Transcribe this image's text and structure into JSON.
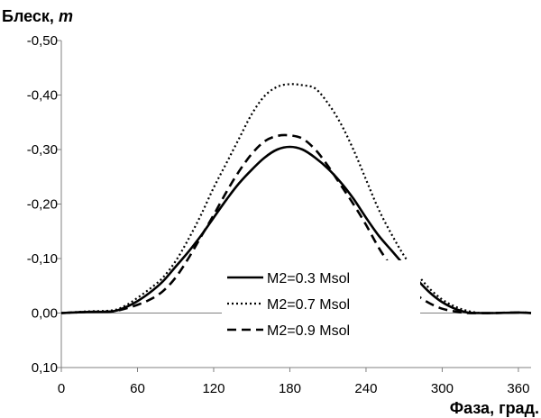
{
  "chart_data": {
    "type": "line",
    "ylabel": "Блеск, m",
    "ylabel_prefix": "Блеск, ",
    "ylabel_unit": "m",
    "xlabel": "Фаза, град.",
    "xlim": [
      0,
      370
    ],
    "ylim": [
      0.1,
      -0.5
    ],
    "y_axis_inverted": true,
    "x_ticks": [
      0,
      60,
      120,
      180,
      240,
      300,
      360
    ],
    "x_tick_labels": [
      "0",
      "60",
      "120",
      "180",
      "240",
      "300",
      "360"
    ],
    "y_ticks": [
      -0.5,
      -0.4,
      -0.3,
      -0.2,
      -0.1,
      0.0,
      0.1
    ],
    "y_tick_labels": [
      "-0,50",
      "-0,40",
      "-0,30",
      "-0,20",
      "-0,10",
      "0,00",
      "0,10"
    ],
    "grid": false,
    "legend_placement": "bottom-center",
    "series": [
      {
        "name": "M2=0.3 Msol",
        "style": "solid",
        "x": [
          0,
          20,
          40,
          50,
          60,
          70,
          80,
          90,
          100,
          110,
          120,
          130,
          140,
          150,
          160,
          170,
          180,
          190,
          200,
          210,
          220,
          230,
          240,
          250,
          260,
          270,
          280,
          290,
          300,
          310,
          320,
          330,
          340,
          360,
          370
        ],
        "y": [
          0.0,
          -0.002,
          -0.003,
          -0.01,
          -0.022,
          -0.038,
          -0.058,
          -0.085,
          -0.112,
          -0.142,
          -0.175,
          -0.208,
          -0.238,
          -0.263,
          -0.285,
          -0.3,
          -0.305,
          -0.3,
          -0.285,
          -0.265,
          -0.24,
          -0.21,
          -0.175,
          -0.142,
          -0.115,
          -0.088,
          -0.062,
          -0.038,
          -0.02,
          -0.008,
          -0.001,
          0.0,
          0.0,
          -0.001,
          0.0
        ]
      },
      {
        "name": "M2=0.7 Msol",
        "style": "dotted",
        "x": [
          0,
          20,
          40,
          50,
          60,
          70,
          80,
          90,
          100,
          110,
          120,
          130,
          140,
          150,
          160,
          170,
          180,
          190,
          200,
          210,
          220,
          230,
          240,
          250,
          260,
          270,
          280,
          290,
          300,
          310,
          320,
          330,
          340,
          360,
          370
        ],
        "y": [
          0.0,
          -0.003,
          -0.005,
          -0.013,
          -0.028,
          -0.045,
          -0.065,
          -0.095,
          -0.135,
          -0.18,
          -0.23,
          -0.275,
          -0.32,
          -0.365,
          -0.398,
          -0.415,
          -0.42,
          -0.418,
          -0.412,
          -0.385,
          -0.348,
          -0.3,
          -0.245,
          -0.19,
          -0.145,
          -0.105,
          -0.072,
          -0.045,
          -0.025,
          -0.012,
          -0.004,
          0.0,
          0.0,
          -0.001,
          0.0
        ]
      },
      {
        "name": "M2=0.9 Msol",
        "style": "dashed",
        "x": [
          0,
          20,
          40,
          50,
          60,
          70,
          80,
          90,
          100,
          110,
          120,
          130,
          140,
          150,
          160,
          170,
          180,
          190,
          200,
          210,
          220,
          230,
          240,
          250,
          260,
          270,
          280,
          290,
          300,
          310,
          320,
          330,
          340,
          360,
          370
        ],
        "y": [
          0.0,
          -0.002,
          -0.003,
          -0.008,
          -0.015,
          -0.025,
          -0.04,
          -0.065,
          -0.1,
          -0.14,
          -0.18,
          -0.222,
          -0.26,
          -0.292,
          -0.315,
          -0.325,
          -0.326,
          -0.32,
          -0.3,
          -0.27,
          -0.235,
          -0.2,
          -0.162,
          -0.12,
          -0.085,
          -0.055,
          -0.033,
          -0.018,
          -0.008,
          -0.003,
          0.0,
          0.0,
          0.0,
          -0.001,
          0.0
        ]
      }
    ]
  }
}
